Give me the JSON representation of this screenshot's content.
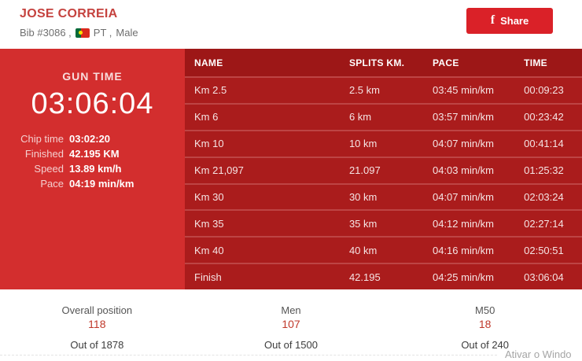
{
  "header": {
    "title": "JOSE CORREIA",
    "bib": "Bib #3086 ,",
    "country": "PT ,",
    "gender": "Male",
    "share": {
      "glyph": "f",
      "label": "Share"
    }
  },
  "gun_panel": {
    "label": "GUN TIME",
    "time": "03:06:04",
    "stats": [
      {
        "label": "Chip time",
        "value": "03:02:20"
      },
      {
        "label": "Finished",
        "value": "42.195 KM"
      },
      {
        "label": "Speed",
        "value": "13.89 km/h"
      },
      {
        "label": "Pace",
        "value": "04:19 min/km"
      }
    ]
  },
  "splits": {
    "columns": {
      "name": "NAME",
      "splits": "SPLITS KM.",
      "pace": "PACE",
      "time": "TIME"
    },
    "rows": [
      {
        "name": "Km 2.5",
        "splits": "2.5 km",
        "pace": "03:45 min/km",
        "time": "00:09:23"
      },
      {
        "name": "Km 6",
        "splits": "6 km",
        "pace": "03:57 min/km",
        "time": "00:23:42"
      },
      {
        "name": "Km 10",
        "splits": "10 km",
        "pace": "04:07 min/km",
        "time": "00:41:14"
      },
      {
        "name": "Km 21,097",
        "splits": "21.097",
        "pace": "04:03 min/km",
        "time": "01:25:32"
      },
      {
        "name": "Km 30",
        "splits": "30 km",
        "pace": "04:07 min/km",
        "time": "02:03:24"
      },
      {
        "name": "Km 35",
        "splits": "35 km",
        "pace": "04:12 min/km",
        "time": "02:27:14"
      },
      {
        "name": "Km 40",
        "splits": "40 km",
        "pace": "04:16 min/km",
        "time": "02:50:51"
      },
      {
        "name": "Finish",
        "splits": "42.195",
        "pace": "04:25 min/km",
        "time": "03:06:04"
      }
    ]
  },
  "positions": [
    {
      "label": "Overall position",
      "value": "118",
      "out_of": "Out of 1878"
    },
    {
      "label": "Men",
      "value": "107",
      "out_of": "Out of 1500"
    },
    {
      "label": "M50",
      "value": "18",
      "out_of": "Out of 240"
    }
  ],
  "watermark": "Ativar o Windo",
  "colors": {
    "panel_red": "#d32e2e",
    "table_header_red": "#9d1717",
    "table_row_red": "#aa1c1c",
    "title_red": "#c5423e",
    "position_red": "#c0392b",
    "share_red": "#da2128"
  }
}
